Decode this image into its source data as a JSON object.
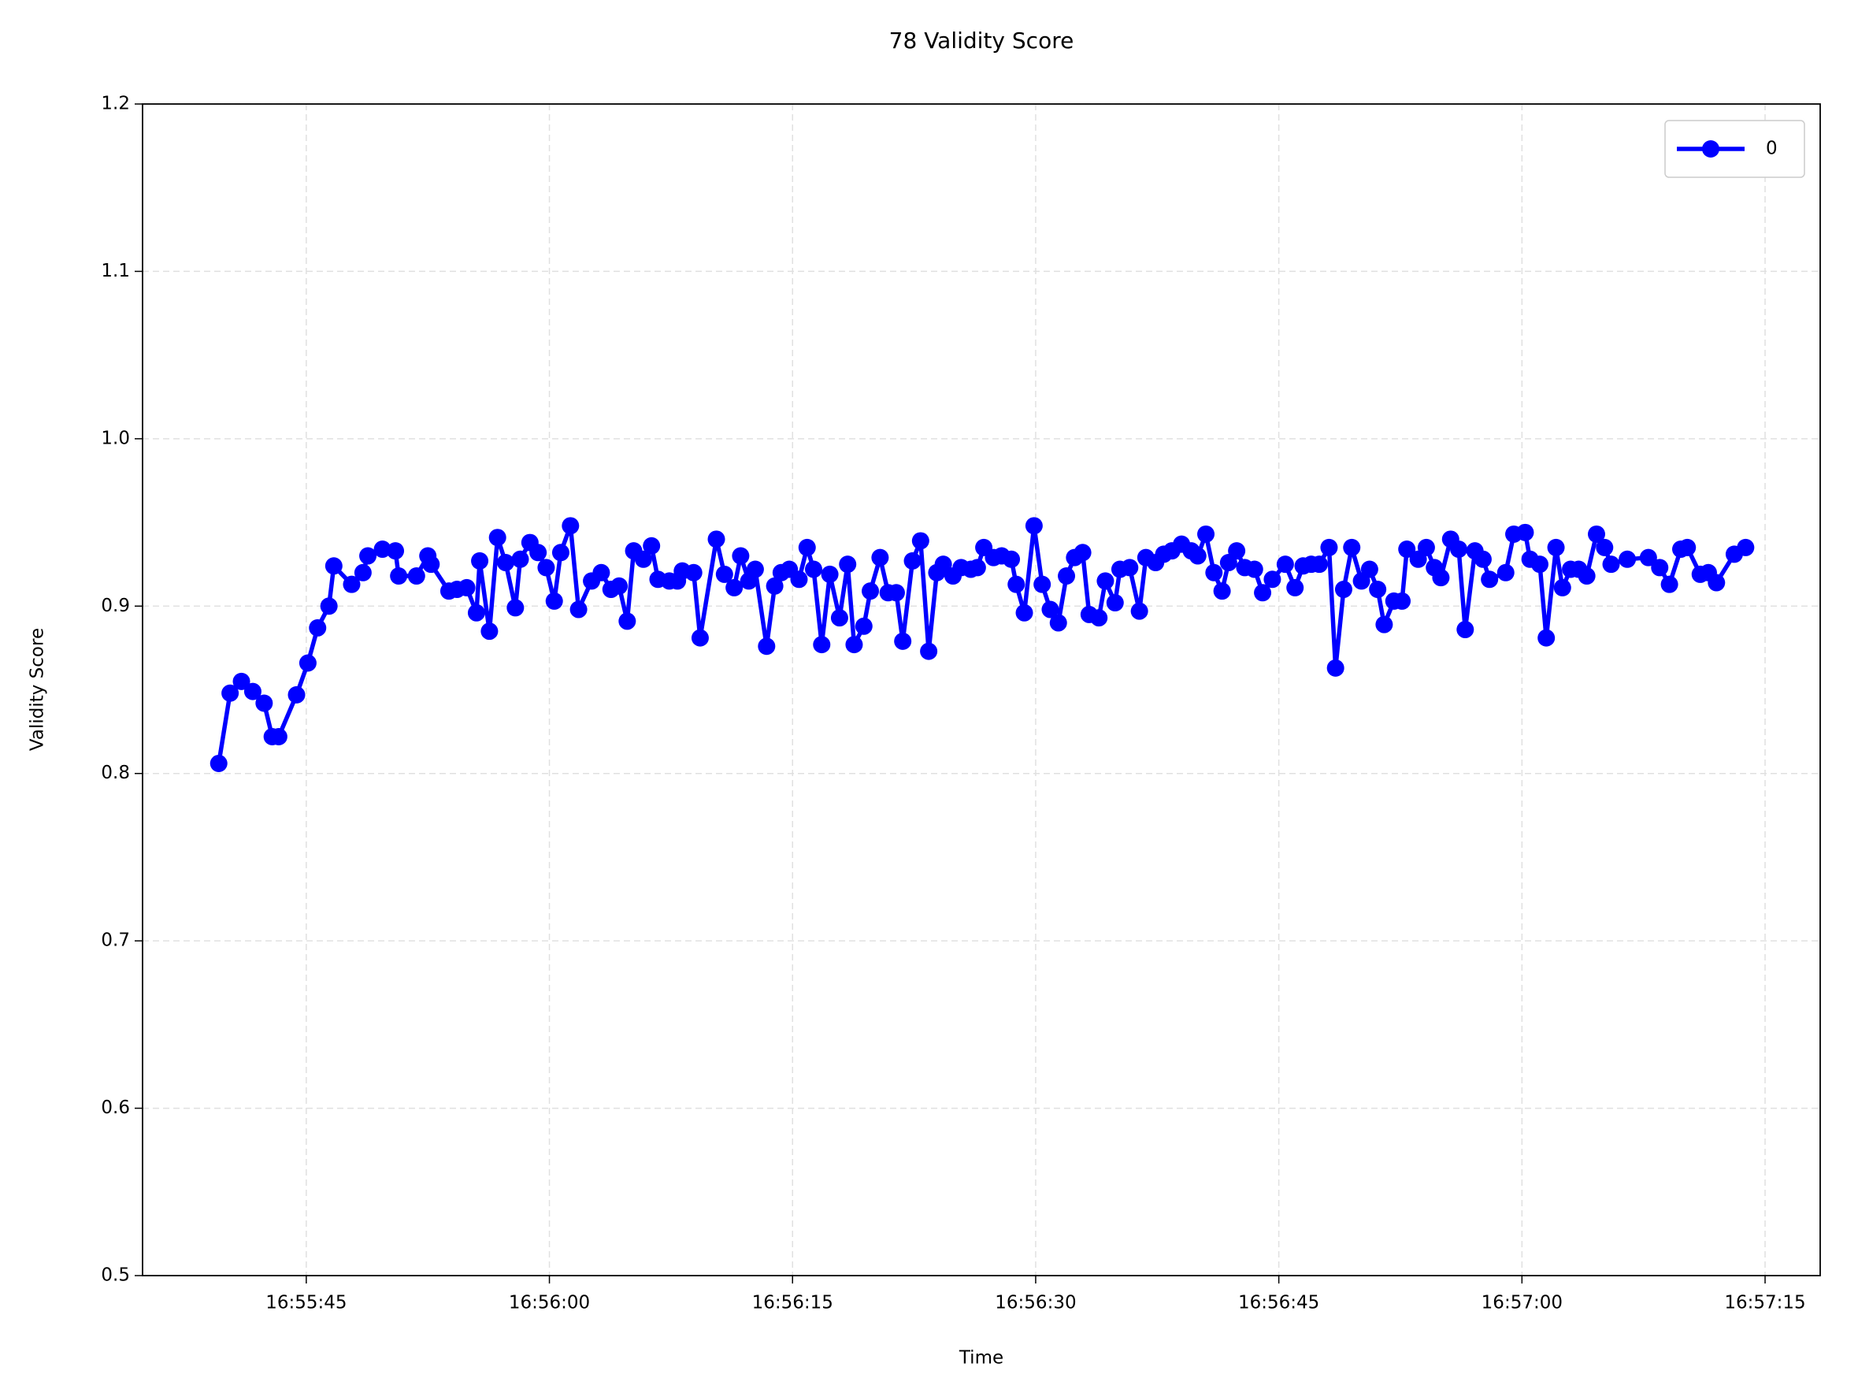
{
  "chart_data": {
    "type": "line",
    "title": "78 Validity Score",
    "x_label": "Time",
    "y_label": "Validity Score",
    "x": [
      "16:55:39.6",
      "16:55:40.3",
      "16:55:41.0",
      "16:55:41.7",
      "16:55:42.4",
      "16:55:42.9",
      "16:55:43.3",
      "16:55:44.4",
      "16:55:45.1",
      "16:55:45.7",
      "16:55:46.4",
      "16:55:46.7",
      "16:55:47.8",
      "16:55:48.5",
      "16:55:48.8",
      "16:55:49.7",
      "16:55:50.5",
      "16:55:50.7",
      "16:55:51.8",
      "16:55:52.5",
      "16:55:52.7",
      "16:55:53.8",
      "16:55:54.3",
      "16:55:54.9",
      "16:55:55.5",
      "16:55:55.7",
      "16:55:56.3",
      "16:55:56.8",
      "16:55:57.3",
      "16:55:57.9",
      "16:55:58.2",
      "16:55:58.8",
      "16:55:59.3",
      "16:55:59.8",
      "16:56:00.3",
      "16:56:00.7",
      "16:56:01.3",
      "16:56:01.8",
      "16:56:02.6",
      "16:56:03.2",
      "16:56:03.8",
      "16:56:04.3",
      "16:56:04.8",
      "16:56:05.2",
      "16:56:05.8",
      "16:56:06.3",
      "16:56:06.7",
      "16:56:07.4",
      "16:56:07.9",
      "16:56:08.2",
      "16:56:08.9",
      "16:56:09.3",
      "16:56:10.3",
      "16:56:10.8",
      "16:56:11.4",
      "16:56:11.8",
      "16:56:12.3",
      "16:56:12.7",
      "16:56:13.4",
      "16:56:13.9",
      "16:56:14.3",
      "16:56:14.8",
      "16:56:15.4",
      "16:56:15.9",
      "16:56:16.3",
      "16:56:16.8",
      "16:56:17.3",
      "16:56:17.9",
      "16:56:18.4",
      "16:56:18.8",
      "16:56:19.4",
      "16:56:19.8",
      "16:56:20.4",
      "16:56:20.9",
      "16:56:21.4",
      "16:56:21.8",
      "16:56:22.4",
      "16:56:22.9",
      "16:56:23.4",
      "16:56:23.9",
      "16:56:24.3",
      "16:56:24.9",
      "16:56:25.4",
      "16:56:26.0",
      "16:56:26.4",
      "16:56:26.8",
      "16:56:27.4",
      "16:56:27.9",
      "16:56:28.5",
      "16:56:28.8",
      "16:56:29.3",
      "16:56:29.9",
      "16:56:30.4",
      "16:56:30.9",
      "16:56:31.4",
      "16:56:31.9",
      "16:56:32.4",
      "16:56:32.9",
      "16:56:33.3",
      "16:56:33.9",
      "16:56:34.3",
      "16:56:34.9",
      "16:56:35.2",
      "16:56:35.8",
      "16:56:36.4",
      "16:56:36.8",
      "16:56:37.4",
      "16:56:37.9",
      "16:56:38.4",
      "16:56:39.0",
      "16:56:39.6",
      "16:56:40.0",
      "16:56:40.5",
      "16:56:41.0",
      "16:56:41.5",
      "16:56:41.9",
      "16:56:42.4",
      "16:56:42.9",
      "16:56:43.5",
      "16:56:44.0",
      "16:56:44.6",
      "16:56:45.4",
      "16:56:46.0",
      "16:56:46.5",
      "16:56:47.0",
      "16:56:47.5",
      "16:56:48.1",
      "16:56:48.5",
      "16:56:49.0",
      "16:56:49.5",
      "16:56:50.1",
      "16:56:50.6",
      "16:56:51.1",
      "16:56:51.5",
      "16:56:52.1",
      "16:56:52.6",
      "16:56:52.9",
      "16:56:53.6",
      "16:56:54.1",
      "16:56:54.6",
      "16:56:55.0",
      "16:56:55.6",
      "16:56:56.1",
      "16:56:56.5",
      "16:56:57.1",
      "16:56:57.6",
      "16:56:58.0",
      "16:56:59.0",
      "16:56:59.5",
      "16:57:00.2",
      "16:57:00.5",
      "16:57:01.1",
      "16:57:01.5",
      "16:57:02.1",
      "16:57:02.5",
      "16:57:03.0",
      "16:57:03.5",
      "16:57:04.0",
      "16:57:04.6",
      "16:57:05.1",
      "16:57:05.5",
      "16:57:06.5",
      "16:57:07.8",
      "16:57:08.5",
      "16:57:09.1",
      "16:57:09.8",
      "16:57:10.2",
      "16:57:11.0",
      "16:57:11.5",
      "16:57:12.0",
      "16:57:13.1",
      "16:57:13.8"
    ],
    "series": [
      {
        "name": "0",
        "color": "#0000ff",
        "values": [
          0.806,
          0.848,
          0.855,
          0.849,
          0.842,
          0.822,
          0.822,
          0.847,
          0.866,
          0.887,
          0.9,
          0.924,
          0.913,
          0.92,
          0.93,
          0.934,
          0.933,
          0.918,
          0.918,
          0.93,
          0.925,
          0.909,
          0.91,
          0.911,
          0.896,
          0.927,
          0.885,
          0.941,
          0.926,
          0.899,
          0.928,
          0.938,
          0.932,
          0.923,
          0.903,
          0.932,
          0.948,
          0.898,
          0.915,
          0.92,
          0.91,
          0.912,
          0.891,
          0.933,
          0.928,
          0.936,
          0.916,
          0.915,
          0.915,
          0.921,
          0.92,
          0.881,
          0.94,
          0.919,
          0.911,
          0.93,
          0.915,
          0.922,
          0.876,
          0.912,
          0.92,
          0.922,
          0.916,
          0.935,
          0.922,
          0.877,
          0.919,
          0.893,
          0.925,
          0.877,
          0.888,
          0.909,
          0.929,
          0.908,
          0.908,
          0.879,
          0.927,
          0.939,
          0.873,
          0.92,
          0.925,
          0.918,
          0.923,
          0.922,
          0.923,
          0.935,
          0.929,
          0.93,
          0.928,
          0.913,
          0.896,
          0.948,
          0.913,
          0.898,
          0.89,
          0.918,
          0.929,
          0.932,
          0.895,
          0.893,
          0.915,
          0.902,
          0.922,
          0.923,
          0.897,
          0.929,
          0.926,
          0.931,
          0.933,
          0.937,
          0.933,
          0.93,
          0.943,
          0.92,
          0.909,
          0.926,
          0.933,
          0.923,
          0.922,
          0.908,
          0.916,
          0.925,
          0.911,
          0.924,
          0.925,
          0.925,
          0.935,
          0.863,
          0.91,
          0.935,
          0.915,
          0.922,
          0.91,
          0.889,
          0.903,
          0.903,
          0.934,
          0.928,
          0.935,
          0.923,
          0.917,
          0.94,
          0.934,
          0.886,
          0.933,
          0.928,
          0.916,
          0.92,
          0.943,
          0.944,
          0.928,
          0.925,
          0.881,
          0.935,
          0.911,
          0.922,
          0.922,
          0.918,
          0.943,
          0.935,
          0.925,
          0.928,
          0.929,
          0.923,
          0.913,
          0.934,
          0.935,
          0.919,
          0.92,
          0.914,
          0.931,
          0.935
        ]
      }
    ],
    "xlim": [
      "16:55:34.9",
      "16:57:18.4"
    ],
    "xticks": [
      "16:55:45",
      "16:56:00",
      "16:56:15",
      "16:56:30",
      "16:56:45",
      "16:57:00",
      "16:57:15"
    ],
    "ylim": [
      0.5,
      1.2
    ],
    "yticks": [
      0.5,
      0.6,
      0.7,
      0.8,
      0.9,
      {
        "value": 1,
        "label": "1.0"
      },
      1.1,
      1.2
    ],
    "grid": true,
    "legend": "upper right"
  }
}
